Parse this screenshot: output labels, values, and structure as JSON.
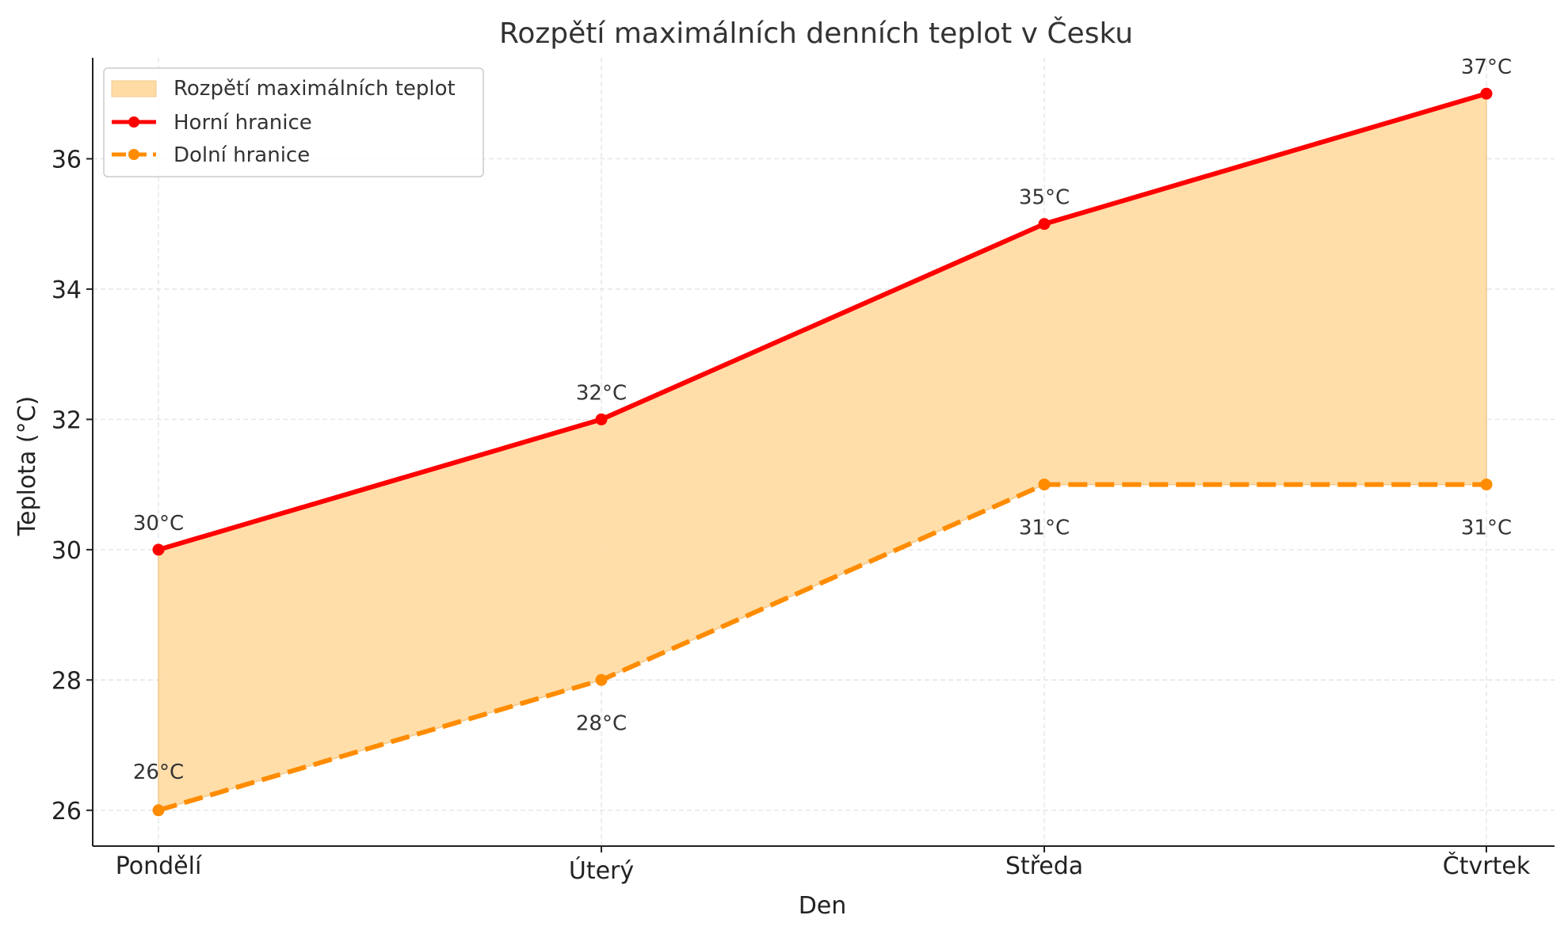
{
  "chart_data": {
    "type": "area",
    "title": "Rozpětí maximálních denních teplot v Česku",
    "xlabel": "Den",
    "ylabel": "Teplota (°C)",
    "categories": [
      "Pondělí",
      "Úterý",
      "Středa",
      "Čtvrtek"
    ],
    "ylim": [
      25.45,
      37.55
    ],
    "yticks": [
      26,
      28,
      30,
      32,
      34,
      36
    ],
    "grid": true,
    "legend_position": "top-left",
    "legend": [
      {
        "key": "range",
        "label": "Rozpětí maximálních teplot"
      },
      {
        "key": "upper",
        "label": "Horní hranice"
      },
      {
        "key": "lower",
        "label": "Dolní hranice"
      }
    ],
    "series": [
      {
        "key": "upper",
        "name": "Horní hranice",
        "values": [
          30,
          32,
          35,
          37
        ],
        "labels": [
          "30°C",
          "32°C",
          "35°C",
          "37°C"
        ],
        "color": "#ff0000",
        "style": "solid"
      },
      {
        "key": "lower",
        "name": "Dolní hranice",
        "values": [
          26,
          28,
          31,
          31
        ],
        "labels": [
          "26°C",
          "28°C",
          "31°C",
          "31°C"
        ],
        "color": "#ff8c00",
        "style": "dashed"
      }
    ],
    "fill": {
      "name": "Rozpětí maximálních teplot",
      "color": "#ffdca5"
    }
  }
}
